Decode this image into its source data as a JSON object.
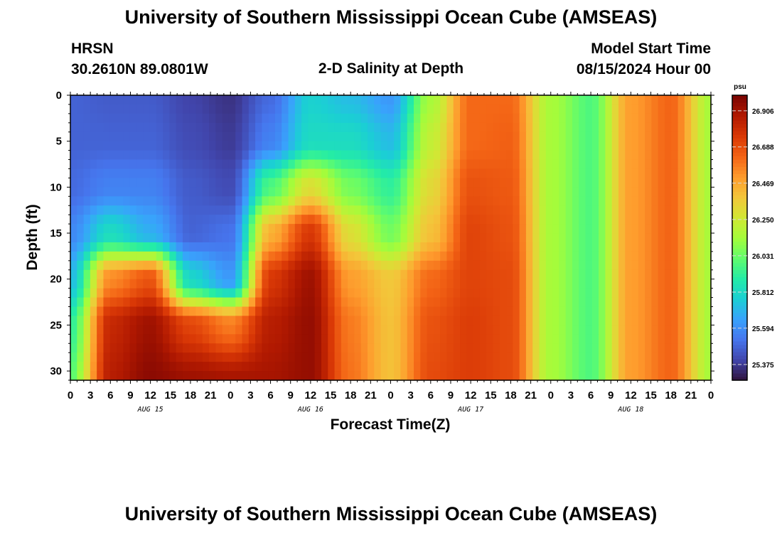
{
  "page": {
    "title": "University of Southern Mississippi Ocean Cube (AMSEAS)",
    "station": "HRSN",
    "coords": "30.2610N  89.0801W",
    "plot_name": "2-D Salinity at Depth",
    "model_start_label": "Model Start Time",
    "model_start_value": "08/15/2024 Hour 00",
    "footer_title": "University of Southern Mississippi Ocean Cube (AMSEAS)"
  },
  "chart_data": {
    "type": "heatmap",
    "title": "2-D Salinity at Depth",
    "xlabel": "Forecast Time(Z)",
    "ylabel": "Depth (ft)",
    "colorbar_unit": "psu",
    "x_tick_labels": [
      "0",
      "3",
      "6",
      "9",
      "12",
      "15",
      "18",
      "21",
      "0",
      "3",
      "6",
      "9",
      "12",
      "15",
      "18",
      "21",
      "0",
      "3",
      "6",
      "9",
      "12",
      "15",
      "18",
      "21",
      "0",
      "3",
      "6",
      "9",
      "12",
      "15",
      "18",
      "21",
      "0"
    ],
    "x_range_hours": [
      0,
      96
    ],
    "date_labels": [
      {
        "label": "AUG 15",
        "hour": 12
      },
      {
        "label": "AUG 16",
        "hour": 36
      },
      {
        "label": "AUG 17",
        "hour": 60
      },
      {
        "label": "AUG 18",
        "hour": 84
      }
    ],
    "y_ticks": [
      0,
      5,
      10,
      15,
      20,
      25,
      30
    ],
    "y_range_ft": [
      0,
      31
    ],
    "y_inverted": true,
    "colorbar_ticks": [
      25.375,
      25.594,
      25.812,
      26.031,
      26.25,
      26.469,
      26.688,
      26.906
    ],
    "color_range": [
      25.28,
      27.0
    ],
    "colormap": [
      "#30123b",
      "#4145ab",
      "#4675ed",
      "#39a2fc",
      "#1bcfd4",
      "#24eca6",
      "#61fc6c",
      "#a4fc3b",
      "#d1e834",
      "#f3c63a",
      "#fe9b2d",
      "#f36315",
      "#d93806",
      "#b11901",
      "#7a0402"
    ],
    "time_hours": [
      0,
      6,
      12,
      18,
      24,
      30,
      36,
      42,
      48,
      54,
      60,
      66,
      72,
      78,
      84,
      90,
      96
    ],
    "depths_ft": [
      0,
      5,
      10,
      15,
      20,
      25,
      31
    ],
    "salinity_psu": [
      [
        25.48,
        25.46,
        25.46,
        25.4,
        25.36,
        25.5,
        25.78,
        25.72,
        25.62,
        26.15,
        26.62,
        26.62,
        26.15,
        25.98,
        26.5,
        26.63,
        26.15
      ],
      [
        25.48,
        25.48,
        25.48,
        25.42,
        25.38,
        25.56,
        25.82,
        25.82,
        25.72,
        26.22,
        26.62,
        26.64,
        26.15,
        25.98,
        26.5,
        26.63,
        26.15
      ],
      [
        25.5,
        25.56,
        25.56,
        25.46,
        25.42,
        25.98,
        26.3,
        26.05,
        25.92,
        26.32,
        26.68,
        26.66,
        26.15,
        25.98,
        26.5,
        26.63,
        26.15
      ],
      [
        25.58,
        25.82,
        25.68,
        25.48,
        25.52,
        26.45,
        26.76,
        26.3,
        26.05,
        26.4,
        26.72,
        26.68,
        26.15,
        25.98,
        26.5,
        26.63,
        26.15
      ],
      [
        25.72,
        26.55,
        26.68,
        25.8,
        25.62,
        26.76,
        26.92,
        26.5,
        26.38,
        26.62,
        26.72,
        26.7,
        26.15,
        25.98,
        26.5,
        26.63,
        26.15
      ],
      [
        25.92,
        26.82,
        26.92,
        26.72,
        26.58,
        26.86,
        26.94,
        26.58,
        26.4,
        26.68,
        26.74,
        26.7,
        26.15,
        25.98,
        26.5,
        26.63,
        26.15
      ],
      [
        26.0,
        26.86,
        26.96,
        26.92,
        26.9,
        26.9,
        26.94,
        26.6,
        26.4,
        26.7,
        26.74,
        26.7,
        26.15,
        25.98,
        26.5,
        26.63,
        26.15
      ]
    ]
  }
}
